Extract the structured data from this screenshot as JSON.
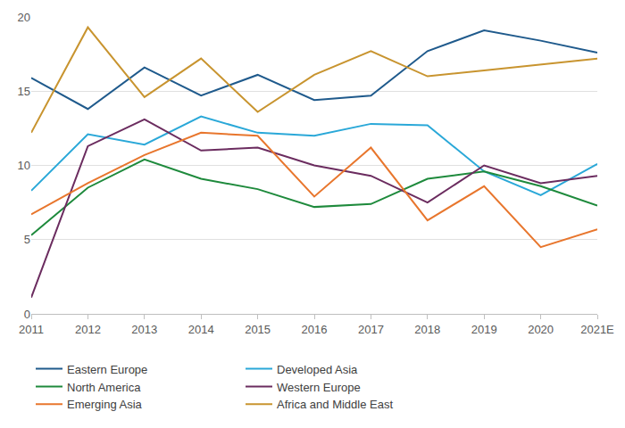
{
  "chart_data": {
    "type": "line",
    "categories": [
      "2011",
      "2012",
      "2013",
      "2014",
      "2015",
      "2016",
      "2017",
      "2018",
      "2019",
      "2020",
      "2021E"
    ],
    "series": [
      {
        "name": "Eastern Europe",
        "color": "#1f5a8c",
        "values": [
          15.9,
          13.8,
          16.6,
          14.7,
          16.1,
          14.4,
          14.7,
          17.7,
          19.1,
          18.4,
          17.6
        ]
      },
      {
        "name": "Developed Asia",
        "color": "#2aa8d8",
        "values": [
          8.3,
          12.1,
          11.4,
          13.3,
          12.2,
          12.0,
          12.8,
          12.7,
          9.6,
          8.0,
          10.1
        ]
      },
      {
        "name": "North America",
        "color": "#1e8a3c",
        "values": [
          5.3,
          8.5,
          10.4,
          9.1,
          8.4,
          7.2,
          7.4,
          9.1,
          9.6,
          8.6,
          7.3
        ]
      },
      {
        "name": "Western Europe",
        "color": "#6b2c5f",
        "values": [
          1.1,
          11.3,
          13.1,
          11.0,
          11.2,
          10.0,
          9.3,
          7.5,
          10.0,
          8.8,
          9.3
        ]
      },
      {
        "name": "Emerging Asia",
        "color": "#e8762d",
        "values": [
          6.7,
          8.8,
          10.7,
          12.2,
          12.0,
          7.9,
          11.2,
          6.3,
          8.6,
          4.5,
          5.7
        ]
      },
      {
        "name": "Africa and Middle East",
        "color": "#c8942f",
        "values": [
          12.2,
          19.3,
          14.6,
          17.2,
          13.6,
          16.1,
          17.7,
          16.0,
          16.4,
          16.8,
          17.2
        ]
      }
    ],
    "ylim": [
      0,
      20
    ],
    "yticks": [
      0,
      5,
      10,
      15,
      20
    ],
    "grid": true,
    "legend": "bottom"
  }
}
